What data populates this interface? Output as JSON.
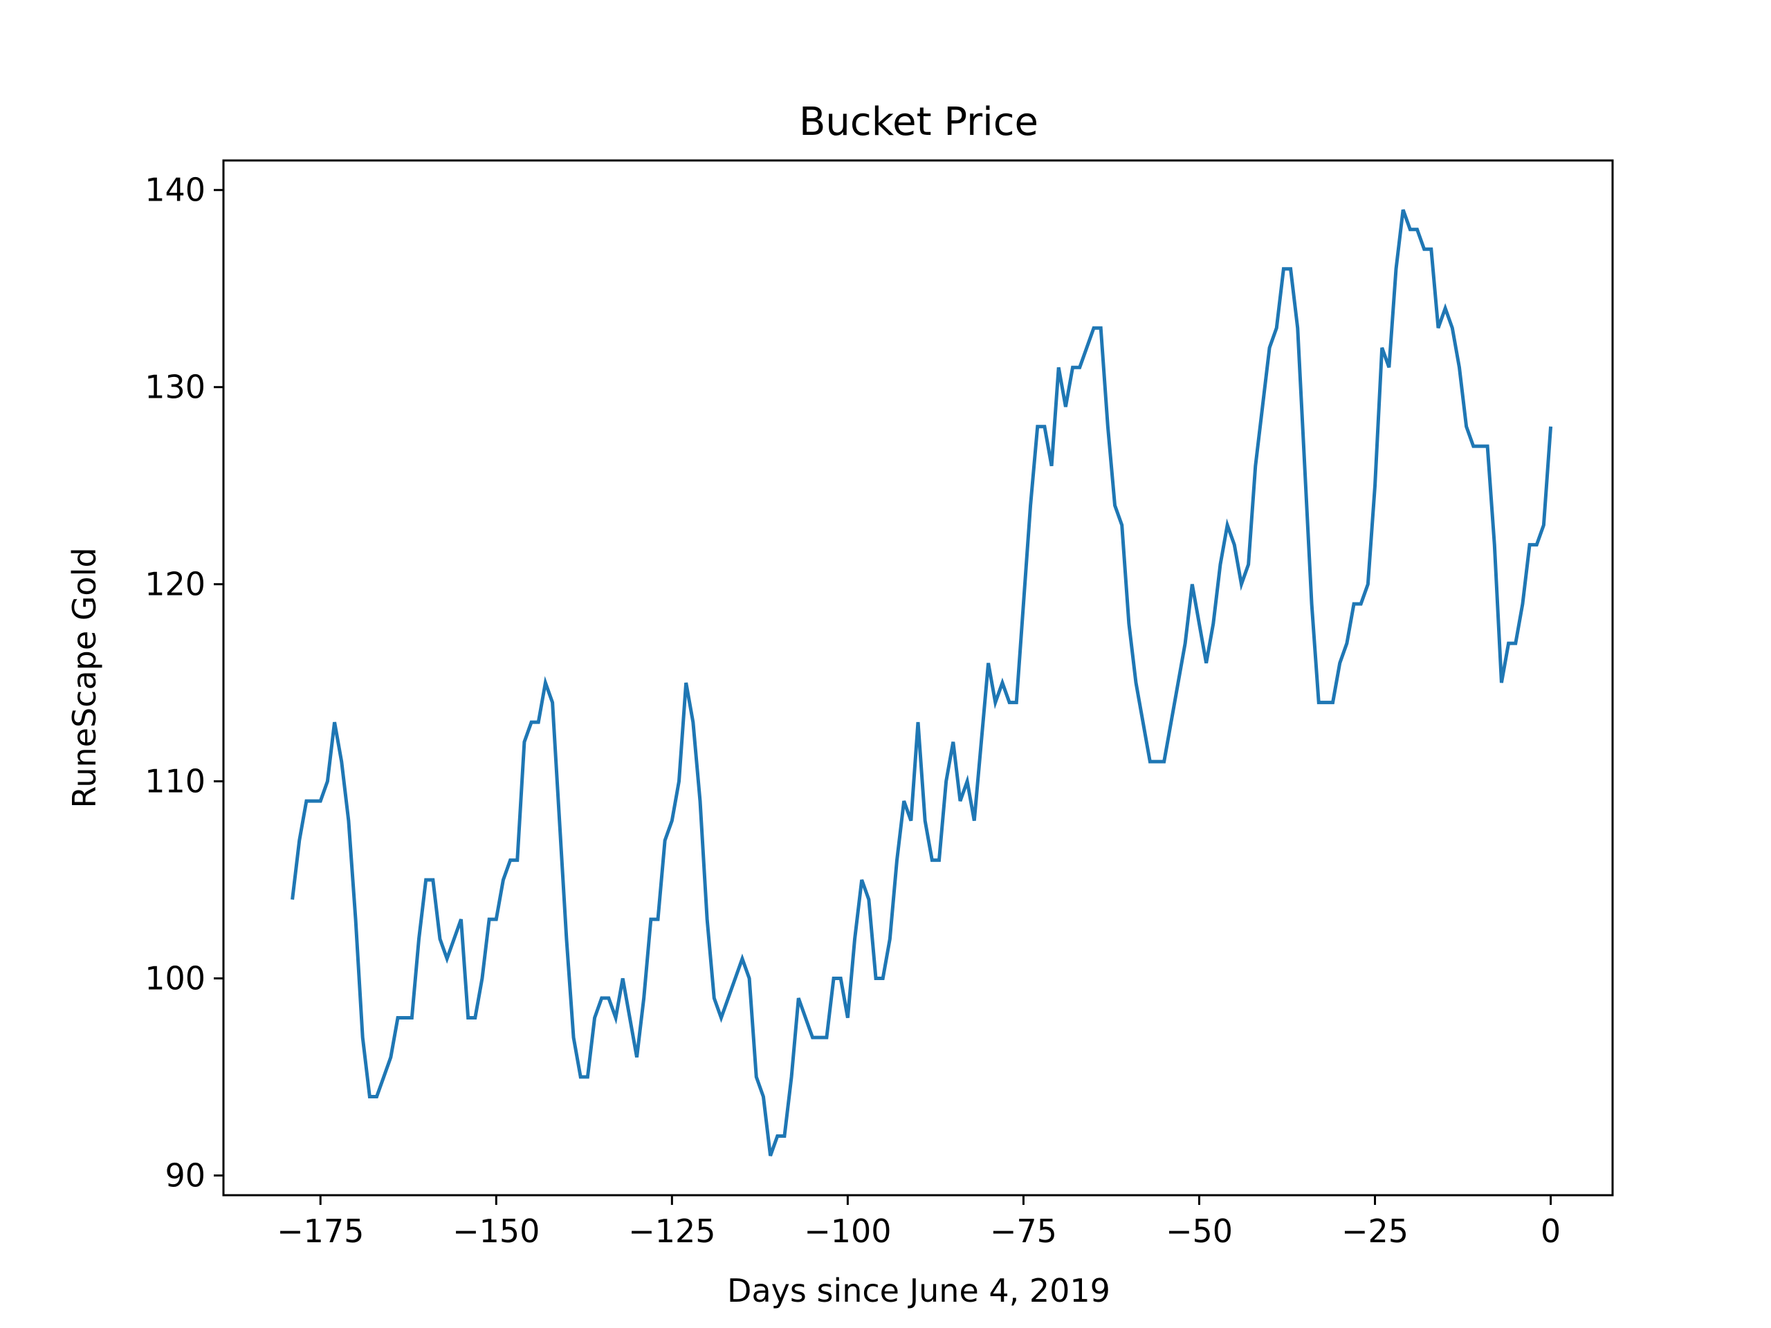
{
  "chart_data": {
    "type": "line",
    "title": "Bucket Price",
    "xlabel": "Days since June 4, 2019",
    "ylabel": "RuneScape Gold",
    "xlim": [
      -188.8,
      8.8
    ],
    "ylim": [
      89,
      141.5
    ],
    "xticks": [
      -175,
      -150,
      -125,
      -100,
      -75,
      -50,
      -25,
      0
    ],
    "xtick_labels": [
      "−175",
      "−150",
      "−125",
      "−100",
      "−75",
      "−50",
      "−25",
      "0"
    ],
    "yticks": [
      90,
      100,
      110,
      120,
      130,
      140
    ],
    "ytick_labels": [
      "90",
      "100",
      "110",
      "120",
      "130",
      "140"
    ],
    "grid": false,
    "legend": "none",
    "line_color": "#1f77b4",
    "series": [
      {
        "x": [
          -179,
          -178,
          -177,
          -176,
          -175,
          -174,
          -173,
          -172,
          -171,
          -170,
          -169,
          -168,
          -167,
          -166,
          -165,
          -164,
          -163,
          -162,
          -161,
          -160,
          -159,
          -158,
          -157,
          -156,
          -155,
          -154,
          -153,
          -152,
          -151,
          -150,
          -149,
          -148,
          -147,
          -146,
          -145,
          -144,
          -143,
          -142,
          -141,
          -140,
          -139,
          -138,
          -137,
          -136,
          -135,
          -134,
          -133,
          -132,
          -131,
          -130,
          -129,
          -128,
          -127,
          -126,
          -125,
          -124,
          -123,
          -122,
          -121,
          -120,
          -119,
          -118,
          -117,
          -116,
          -115,
          -114,
          -113,
          -112,
          -111,
          -110,
          -109,
          -108,
          -107,
          -106,
          -105,
          -104,
          -103,
          -102,
          -101,
          -100,
          -99,
          -98,
          -97,
          -96,
          -95,
          -94,
          -93,
          -92,
          -91,
          -90,
          -89,
          -88,
          -87,
          -86,
          -85,
          -84,
          -83,
          -82,
          -81,
          -80,
          -79,
          -78,
          -77,
          -76,
          -75,
          -74,
          -73,
          -72,
          -71,
          -70,
          -69,
          -68,
          -67,
          -66,
          -65,
          -64,
          -63,
          -62,
          -61,
          -60,
          -59,
          -58,
          -57,
          -56,
          -55,
          -54,
          -53,
          -52,
          -51,
          -50,
          -49,
          -48,
          -47,
          -46,
          -45,
          -44,
          -43,
          -42,
          -41,
          -40,
          -39,
          -38,
          -37,
          -36,
          -35,
          -34,
          -33,
          -32,
          -31,
          -30,
          -29,
          -28,
          -27,
          -26,
          -25,
          -24,
          -23,
          -22,
          -21,
          -20,
          -19,
          -18,
          -17,
          -16,
          -15,
          -14,
          -13,
          -12,
          -11,
          -10,
          -9,
          -8,
          -7,
          -6,
          -5,
          -4,
          -3,
          -2,
          -1,
          0
        ],
        "y": [
          104,
          107,
          109,
          109,
          109,
          110,
          113,
          111,
          108,
          103,
          97,
          94,
          94,
          95,
          96,
          98,
          98,
          98,
          102,
          105,
          105,
          102,
          101,
          102,
          103,
          98,
          98,
          100,
          103,
          103,
          105,
          106,
          106,
          112,
          113,
          113,
          115,
          114,
          108,
          102,
          97,
          95,
          95,
          98,
          99,
          99,
          98,
          100,
          98,
          96,
          99,
          103,
          103,
          107,
          108,
          110,
          115,
          113,
          109,
          103,
          99,
          98,
          99,
          100,
          101,
          100,
          95,
          94,
          91,
          92,
          92,
          95,
          99,
          98,
          97,
          97,
          97,
          100,
          100,
          98,
          102,
          105,
          104,
          100,
          100,
          102,
          106,
          109,
          108,
          113,
          108,
          106,
          106,
          110,
          112,
          109,
          110,
          108,
          112,
          116,
          114,
          115,
          114,
          114,
          119,
          124,
          128,
          128,
          126,
          131,
          129,
          131,
          131,
          132,
          133,
          133,
          128,
          124,
          123,
          118,
          115,
          113,
          111,
          111,
          111,
          113,
          115,
          117,
          120,
          118,
          116,
          118,
          121,
          123,
          122,
          120,
          121,
          126,
          129,
          132,
          133,
          136,
          136,
          133,
          126,
          119,
          114,
          114,
          114,
          116,
          117,
          119,
          119,
          120,
          125,
          132,
          131,
          136,
          139,
          138,
          138,
          137,
          137,
          133,
          134,
          133,
          131,
          128,
          127,
          127,
          127,
          122,
          115,
          117,
          117,
          119,
          122,
          122,
          123,
          128
        ]
      }
    ]
  }
}
